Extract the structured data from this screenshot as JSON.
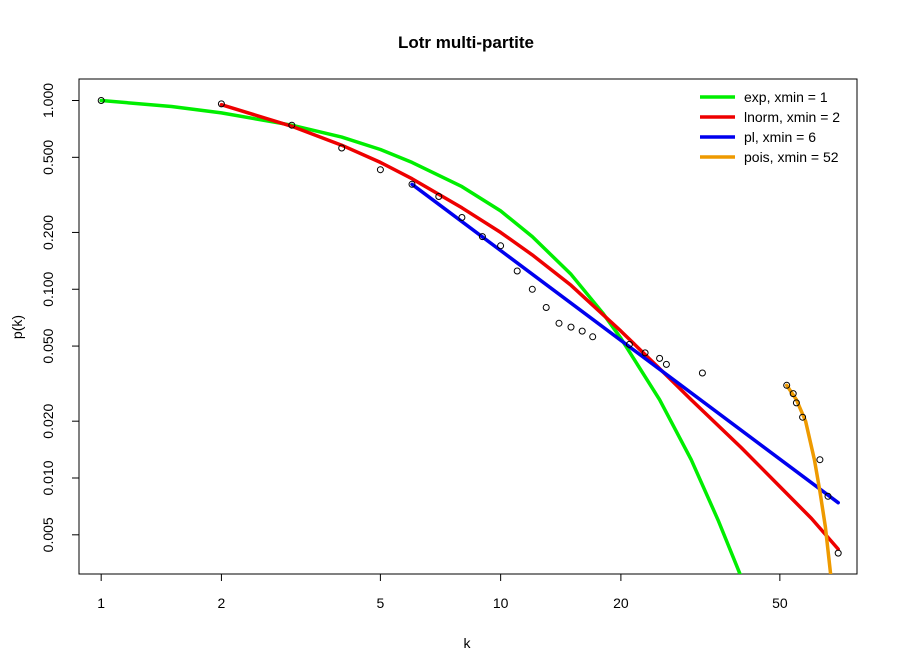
{
  "chart_data": {
    "type": "scatter",
    "title": "Lotr multi-partite",
    "xlabel": "k",
    "ylabel": "p(k)",
    "x_scale": "log",
    "y_scale": "log",
    "xlim": [
      0.88,
      78
    ],
    "ylim": [
      0.0031,
      1.3
    ],
    "xticks": [
      1,
      2,
      5,
      10,
      20,
      50
    ],
    "xtick_labels": [
      "1",
      "2",
      "5",
      "10",
      "20",
      "50"
    ],
    "yticks": [
      0.005,
      0.01,
      0.02,
      0.05,
      0.1,
      0.2,
      0.5,
      1.0
    ],
    "ytick_labels": [
      "0.005",
      "0.010",
      "0.020",
      "0.050",
      "0.100",
      "0.200",
      "0.500",
      "1.000"
    ],
    "grid": false,
    "legend_position": "top-right",
    "points": {
      "x": [
        1,
        2,
        3,
        4,
        5,
        6,
        7,
        8,
        9,
        10,
        11,
        12,
        13,
        14,
        15,
        16,
        17,
        21,
        23,
        25,
        26,
        32,
        52,
        54,
        55,
        57,
        63,
        66,
        70
      ],
      "y": [
        1.0,
        0.96,
        0.74,
        0.56,
        0.43,
        0.36,
        0.31,
        0.24,
        0.19,
        0.17,
        0.125,
        0.1,
        0.08,
        0.066,
        0.063,
        0.06,
        0.056,
        0.051,
        0.046,
        0.043,
        0.04,
        0.036,
        0.031,
        0.028,
        0.025,
        0.021,
        0.0125,
        0.008,
        0.004
      ]
    },
    "series": [
      {
        "name": "exp, xmin = 1",
        "color": "#00ee00",
        "x": [
          1,
          1.5,
          2,
          3,
          4,
          5,
          6,
          8,
          10,
          12,
          15,
          18,
          20,
          25,
          30,
          35,
          40
        ],
        "y": [
          1.0,
          0.93,
          0.86,
          0.74,
          0.64,
          0.55,
          0.47,
          0.35,
          0.26,
          0.19,
          0.12,
          0.075,
          0.055,
          0.026,
          0.0125,
          0.006,
          0.003
        ]
      },
      {
        "name": "lnorm, xmin = 2",
        "color": "#ee0000",
        "x": [
          2,
          3,
          4,
          5,
          6,
          8,
          10,
          12,
          15,
          20,
          25,
          30,
          40,
          50,
          60,
          70
        ],
        "y": [
          0.95,
          0.73,
          0.58,
          0.47,
          0.385,
          0.27,
          0.2,
          0.152,
          0.105,
          0.06,
          0.038,
          0.026,
          0.0145,
          0.009,
          0.0061,
          0.0042
        ]
      },
      {
        "name": "pl, xmin = 6",
        "color": "#0000ee",
        "x": [
          6,
          70
        ],
        "y": [
          0.36,
          0.0074
        ]
      },
      {
        "name": "pois, xmin = 52",
        "color": "#ee9a00",
        "x": [
          52,
          55,
          58,
          61,
          63,
          65,
          67
        ],
        "y": [
          0.031,
          0.026,
          0.02,
          0.0125,
          0.0085,
          0.0055,
          0.0031
        ]
      }
    ]
  }
}
